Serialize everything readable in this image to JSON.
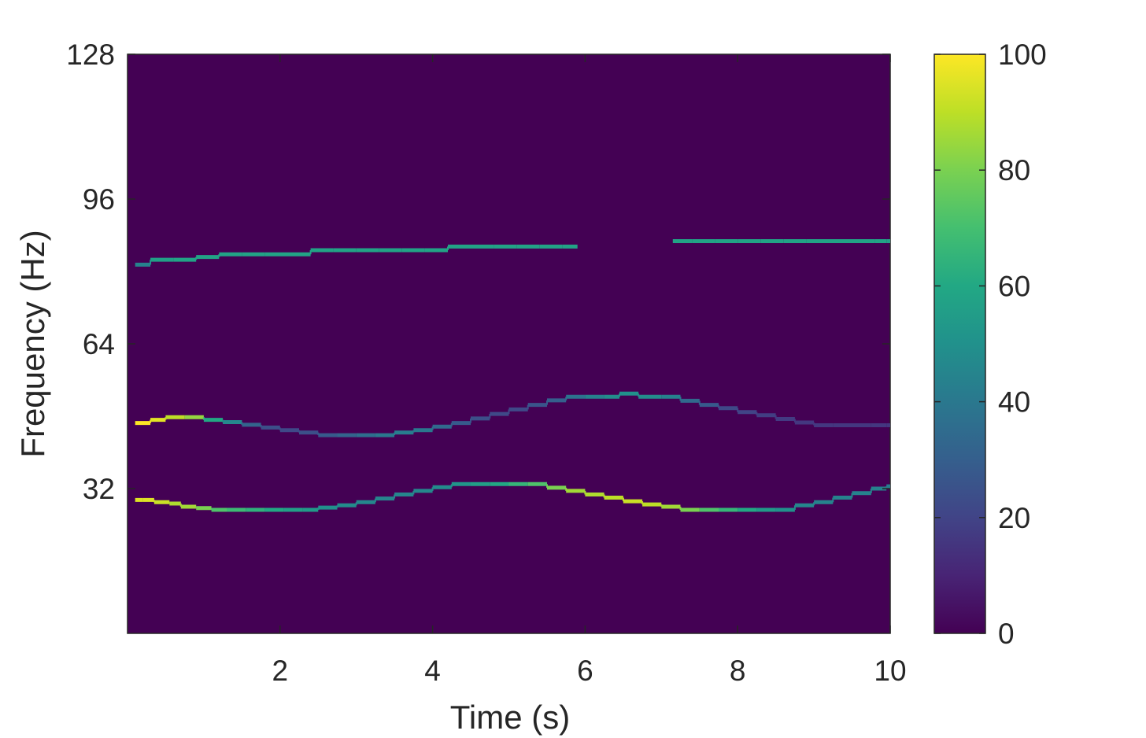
{
  "chart_data": {
    "type": "heatmap",
    "title": "",
    "xlabel": "Time (s)",
    "ylabel": "Frequency (Hz)",
    "xlim": [
      0,
      10
    ],
    "ylim": [
      0,
      128
    ],
    "x_ticks": [
      2,
      4,
      6,
      8,
      10
    ],
    "x_tick_labels": [
      "2",
      "4",
      "6",
      "8",
      "10"
    ],
    "y_ticks": [
      32,
      64,
      96,
      128
    ],
    "y_tick_labels": [
      "32",
      "64",
      "96",
      "128"
    ],
    "grid": false,
    "colormap": "viridis",
    "background_value": 0,
    "colorbar": {
      "range": [
        0,
        100
      ],
      "ticks": [
        0,
        20,
        40,
        60,
        80,
        100
      ],
      "tick_labels": [
        "0",
        "20",
        "40",
        "60",
        "80",
        "100"
      ],
      "placement": "right"
    },
    "series": [
      {
        "points": [
          [
            0.1,
            29.5,
            95
          ],
          [
            0.2,
            29.5,
            95
          ],
          [
            0.35,
            29.0,
            92
          ],
          [
            0.55,
            28.7,
            88
          ],
          [
            0.7,
            28.0,
            86
          ],
          [
            0.9,
            27.7,
            80
          ],
          [
            1.1,
            27.3,
            72
          ],
          [
            1.3,
            27.3,
            68
          ],
          [
            1.55,
            27.3,
            64
          ],
          [
            1.8,
            27.3,
            60
          ],
          [
            2.05,
            27.3,
            56
          ],
          [
            2.3,
            27.3,
            54
          ],
          [
            2.5,
            27.8,
            50
          ],
          [
            2.75,
            28.3,
            48
          ],
          [
            3.0,
            29.0,
            46
          ],
          [
            3.25,
            29.8,
            45
          ],
          [
            3.5,
            30.7,
            45
          ],
          [
            3.75,
            31.5,
            46
          ],
          [
            4.0,
            32.3,
            48
          ],
          [
            4.25,
            33.0,
            52
          ],
          [
            4.5,
            33.0,
            56
          ],
          [
            4.75,
            33.0,
            60
          ],
          [
            5.0,
            33.0,
            66
          ],
          [
            5.25,
            33.0,
            72
          ],
          [
            5.5,
            32.2,
            80
          ],
          [
            5.75,
            31.5,
            86
          ],
          [
            6.0,
            30.7,
            88
          ],
          [
            6.25,
            30.0,
            90
          ],
          [
            6.5,
            29.2,
            92
          ],
          [
            6.75,
            28.5,
            90
          ],
          [
            7.0,
            28.0,
            86
          ],
          [
            7.25,
            27.3,
            80
          ],
          [
            7.5,
            27.3,
            72
          ],
          [
            7.75,
            27.3,
            66
          ],
          [
            8.0,
            27.3,
            60
          ],
          [
            8.25,
            27.3,
            54
          ],
          [
            8.5,
            27.3,
            50
          ],
          [
            8.75,
            28.3,
            46
          ],
          [
            9.0,
            29.0,
            44
          ],
          [
            9.25,
            30.0,
            44
          ],
          [
            9.5,
            31.0,
            44
          ],
          [
            9.75,
            32.0,
            44
          ],
          [
            9.95,
            32.5,
            42
          ]
        ]
      },
      {
        "points": [
          [
            0.1,
            46.5,
            100
          ],
          [
            0.3,
            47.2,
            96
          ],
          [
            0.5,
            47.8,
            90
          ],
          [
            0.75,
            47.8,
            84
          ],
          [
            1.0,
            47.2,
            60
          ],
          [
            1.25,
            46.7,
            46
          ],
          [
            1.5,
            46.1,
            32
          ],
          [
            1.75,
            45.5,
            24
          ],
          [
            2.0,
            44.9,
            22
          ],
          [
            2.25,
            44.4,
            24
          ],
          [
            2.5,
            43.8,
            28
          ],
          [
            2.75,
            43.8,
            32
          ],
          [
            3.0,
            43.8,
            36
          ],
          [
            3.25,
            43.8,
            40
          ],
          [
            3.5,
            44.4,
            42
          ],
          [
            3.75,
            44.9,
            40
          ],
          [
            4.0,
            45.7,
            34
          ],
          [
            4.25,
            46.5,
            28
          ],
          [
            4.5,
            47.5,
            24
          ],
          [
            4.75,
            48.5,
            22
          ],
          [
            5.0,
            49.5,
            22
          ],
          [
            5.25,
            50.5,
            26
          ],
          [
            5.5,
            51.5,
            30
          ],
          [
            5.75,
            52.3,
            38
          ],
          [
            6.0,
            52.3,
            44
          ],
          [
            6.25,
            52.3,
            48
          ],
          [
            6.45,
            53.0,
            50
          ],
          [
            6.7,
            52.3,
            48
          ],
          [
            7.0,
            52.3,
            44
          ],
          [
            7.25,
            51.4,
            34
          ],
          [
            7.5,
            50.5,
            28
          ],
          [
            7.75,
            49.8,
            22
          ],
          [
            8.0,
            48.9,
            20
          ],
          [
            8.25,
            48.2,
            18
          ],
          [
            8.5,
            47.4,
            17
          ],
          [
            8.75,
            46.6,
            16
          ],
          [
            9.0,
            46.0,
            16
          ],
          [
            9.25,
            46.0,
            16
          ],
          [
            9.5,
            46.0,
            16
          ],
          [
            9.75,
            46.0,
            16
          ],
          [
            9.95,
            46.0,
            16
          ]
        ]
      },
      {
        "points": [
          [
            0.1,
            81.5,
            44
          ],
          [
            0.3,
            82.6,
            56
          ],
          [
            0.6,
            82.6,
            58
          ],
          [
            0.9,
            83.2,
            58
          ],
          [
            1.2,
            83.8,
            58
          ],
          [
            1.5,
            83.8,
            58
          ],
          [
            1.8,
            83.8,
            58
          ],
          [
            2.1,
            83.8,
            58
          ],
          [
            2.4,
            84.7,
            58
          ],
          [
            2.7,
            84.7,
            58
          ],
          [
            3.0,
            84.7,
            58
          ],
          [
            3.3,
            84.7,
            58
          ],
          [
            3.6,
            84.7,
            58
          ],
          [
            3.9,
            84.7,
            58
          ],
          [
            4.2,
            85.5,
            58
          ],
          [
            4.5,
            85.5,
            58
          ],
          [
            4.8,
            85.5,
            58
          ],
          [
            5.1,
            85.5,
            58
          ],
          [
            5.4,
            85.5,
            58
          ],
          [
            5.7,
            85.5,
            58
          ],
          [
            5.9,
            85.5,
            56
          ],
          [
            7.15,
            86.7,
            58
          ],
          [
            7.4,
            86.7,
            58
          ],
          [
            7.7,
            86.7,
            58
          ],
          [
            8.0,
            86.7,
            58
          ],
          [
            8.3,
            86.7,
            58
          ],
          [
            8.6,
            86.7,
            58
          ],
          [
            8.9,
            86.7,
            58
          ],
          [
            9.2,
            86.7,
            58
          ],
          [
            9.5,
            86.7,
            58
          ],
          [
            9.8,
            86.7,
            58
          ],
          [
            9.95,
            86.7,
            56
          ]
        ]
      }
    ]
  }
}
